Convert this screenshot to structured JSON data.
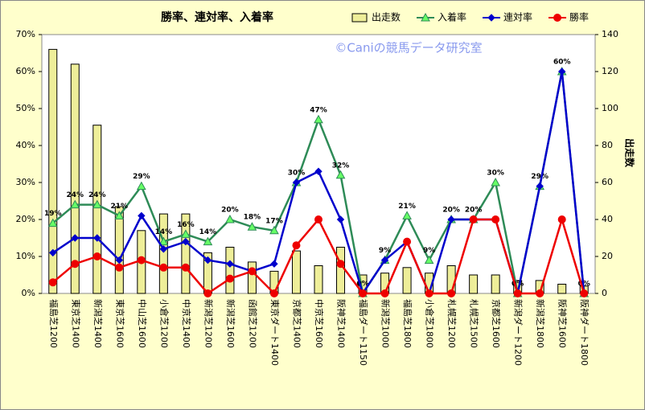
{
  "chart_data": {
    "type": "combo",
    "title": "勝率、連対率、入着率",
    "annotation": "©Caniの競馬データ研究室",
    "y2label": "出走数",
    "categories": [
      "福島芝1200",
      "東京芝1400",
      "新潟芝1400",
      "東京芝1600",
      "中山芝1600",
      "小倉芝1200",
      "中京芝1400",
      "新潟芝1200",
      "新潟芝1600",
      "函館芝1200",
      "東京ダート1400",
      "京都芝1400",
      "中京芝1600",
      "阪神芝1400",
      "福島ダート1150",
      "新潟芝1000",
      "福島芝1800",
      "小倉芝1800",
      "札幌芝1200",
      "札幌芝1500",
      "京都芝1600",
      "新潟ダート1200",
      "新潟芝1800",
      "阪神芝1600",
      "阪神ダート1800"
    ],
    "ylim": [
      0,
      70
    ],
    "yticks": [
      {
        "value": 0,
        "label": "0%"
      },
      {
        "value": 10,
        "label": "10%"
      },
      {
        "value": 20,
        "label": "20%"
      },
      {
        "value": 30,
        "label": "30%"
      },
      {
        "value": 40,
        "label": "40%"
      },
      {
        "value": 50,
        "label": "50%"
      },
      {
        "value": 60,
        "label": "60%"
      },
      {
        "value": 70,
        "label": "70%"
      }
    ],
    "y2lim": [
      0,
      140
    ],
    "y2ticks": [
      0,
      20,
      40,
      60,
      80,
      100,
      120,
      140
    ],
    "grid": false,
    "series": [
      {
        "name": "出走数",
        "type": "bar",
        "axis": "y2",
        "color": "#eeee99",
        "values": [
          132,
          124,
          91,
          47,
          34,
          43,
          43,
          22,
          25,
          17,
          12,
          23,
          15,
          25,
          10,
          11,
          14,
          11,
          15,
          10,
          10,
          7,
          7,
          5,
          4
        ]
      },
      {
        "name": "入着率",
        "type": "line",
        "color": "#2e8b57",
        "marker": "triangle",
        "marker_color": "#66ff66",
        "values": [
          19,
          24,
          24,
          21,
          29,
          14,
          16,
          14,
          20,
          18,
          17,
          30,
          47,
          32,
          0,
          9,
          21,
          9,
          20,
          20,
          30,
          0,
          29,
          60,
          0
        ],
        "value_labels": [
          "19%",
          "24%",
          "24%",
          "21%",
          "29%",
          "14%",
          "16%",
          "14%",
          "20%",
          "18%",
          "17%",
          "30%",
          "47%",
          "32%",
          "0%",
          "9%",
          "21%",
          "9%",
          "20%",
          "20%",
          "30%",
          "0%",
          "29%",
          "60%",
          "0%"
        ]
      },
      {
        "name": "連対率",
        "type": "line",
        "color": "#0000cc",
        "marker": "diamond",
        "marker_color": "#0000cc",
        "values": [
          11,
          15,
          15,
          9,
          21,
          12,
          14,
          9,
          8,
          6,
          8,
          30,
          33,
          20,
          0,
          9,
          14,
          0,
          20,
          20,
          20,
          0,
          29,
          60,
          0
        ]
      },
      {
        "name": "勝率",
        "type": "line",
        "color": "#ee0000",
        "marker": "circle",
        "marker_color": "#ee0000",
        "values": [
          3,
          8,
          10,
          7,
          9,
          7,
          7,
          0,
          4,
          6,
          0,
          13,
          20,
          8,
          0,
          0,
          14,
          0,
          0,
          20,
          20,
          0,
          0,
          20,
          0
        ]
      }
    ]
  }
}
